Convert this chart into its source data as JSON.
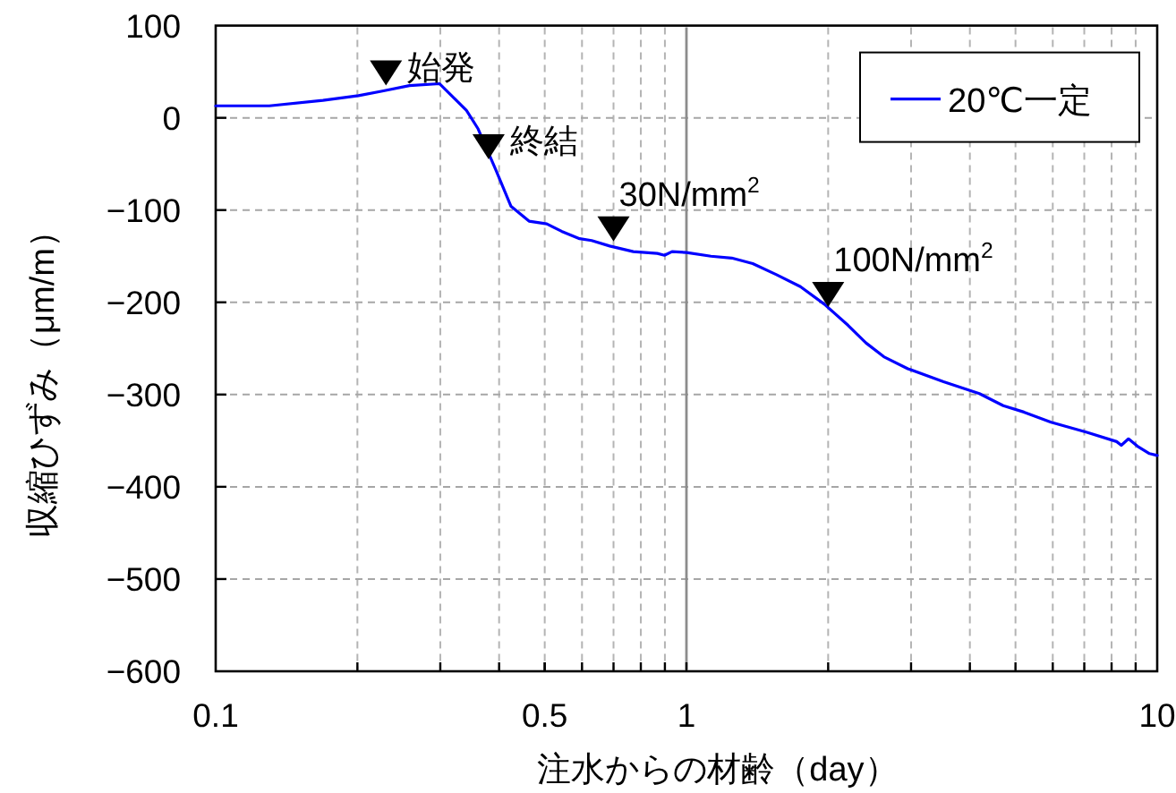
{
  "chart_data": {
    "type": "line",
    "xlabel": "注水からの材齢（day）",
    "ylabel": "収縮ひずみ（μm/m）",
    "x": [
      0.1,
      0.13,
      0.169,
      0.201,
      0.226,
      0.258,
      0.299,
      0.341,
      0.361,
      0.394,
      0.424,
      0.463,
      0.505,
      0.543,
      0.593,
      0.629,
      0.687,
      0.771,
      0.867,
      0.898,
      0.932,
      1.0,
      1.127,
      1.248,
      1.383,
      1.553,
      1.746,
      1.963,
      2.205,
      2.406,
      2.626,
      2.953,
      3.517,
      4.19,
      4.71,
      5.21,
      5.95,
      7.09,
      8.2,
      8.39,
      8.69,
      9.08,
      9.63,
      10
    ],
    "series": [
      {
        "name": "20℃一定",
        "color": "#0000ff",
        "values": [
          13,
          13,
          19,
          24,
          29,
          35,
          37,
          8,
          -12,
          -57,
          -96,
          -112,
          -115,
          -123,
          -131,
          -133,
          -139,
          -145,
          -147,
          -149,
          -145,
          -146,
          -150,
          -152,
          -158,
          -170,
          -183,
          -202,
          -225,
          -244,
          -259,
          -272,
          -286,
          -299,
          -312,
          -319,
          -330,
          -341,
          -351,
          -355,
          -348,
          -356,
          -364,
          -366
        ]
      }
    ],
    "xlim": [
      0.1,
      10
    ],
    "ylim": [
      -600,
      100
    ],
    "xticks": [
      0.1,
      0.5,
      1,
      10
    ],
    "yticks": [
      -600,
      -500,
      -400,
      -300,
      -200,
      -100,
      0,
      100
    ],
    "log": "x",
    "grid": true,
    "legend": "top right",
    "line_style": "solid",
    "ref_lines": [
      {
        "axis": "x",
        "value": 1,
        "color": "#8c8c8c",
        "line_style": "solid"
      }
    ],
    "annotations": [
      {
        "text": "始発",
        "x": 0.23,
        "y": 35
      },
      {
        "text": "終結",
        "x": 0.38,
        "y": -45
      },
      {
        "text": "30N/mm$^{2}$",
        "x": 0.7,
        "y": -134
      },
      {
        "text": "100N/mm$^{2}$",
        "x": 2.0,
        "y": -205
      }
    ]
  }
}
